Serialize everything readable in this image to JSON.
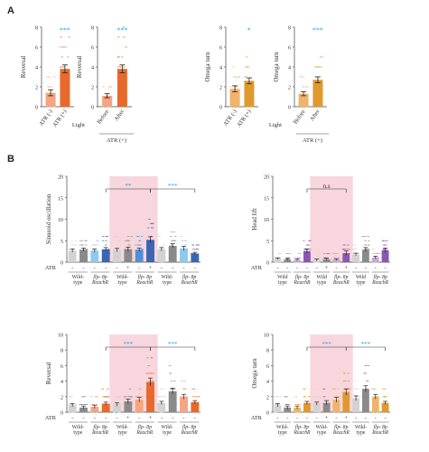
{
  "figure": {
    "panel_A": "A",
    "panel_B": "B"
  },
  "colors": {
    "salmon": "#f4a582",
    "orange": "#e8692c",
    "light_orange": "#f0b36b",
    "dark_orange": "#e0992e",
    "gray_light": "#d2d2d2",
    "gray_dark": "#8a8a8a",
    "blue_light": "#8ec9ee",
    "blue_mid": "#4f8fd6",
    "blue_dark": "#3a66b3",
    "purple_light": "#c7a6d8",
    "purple_dark": "#8a56b3",
    "shade": "#f8d6dd",
    "sig_blue": "#29a3e8"
  },
  "chart_data": [
    {
      "id": "A1",
      "type": "bar",
      "ylabel": "Reversal",
      "ylim": [
        0,
        8
      ],
      "yticks": [
        0,
        2,
        4,
        6,
        8
      ],
      "categories": [
        "ATR (-)",
        "ATR (+)"
      ],
      "values": [
        1.4,
        3.8
      ],
      "errors": [
        0.3,
        0.4
      ],
      "bar_colors": [
        "salmon",
        "orange"
      ],
      "significance": "***"
    },
    {
      "id": "A2",
      "type": "bar",
      "ylabel": "Reversal",
      "ylim": [
        0,
        8
      ],
      "yticks": [
        0,
        2,
        4,
        6,
        8
      ],
      "categories": [
        "Before",
        "After"
      ],
      "values": [
        1.1,
        3.8
      ],
      "errors": [
        0.2,
        0.4
      ],
      "bar_colors": [
        "salmon",
        "orange"
      ],
      "significance": "***",
      "row_label": "Light",
      "group_label": "ATR (+)"
    },
    {
      "id": "A3",
      "type": "bar",
      "ylabel": "Omega turn",
      "ylim": [
        0,
        8
      ],
      "yticks": [
        0,
        2,
        4,
        6,
        8
      ],
      "categories": [
        "ATR (-)",
        "ATR (+)"
      ],
      "values": [
        1.8,
        2.6
      ],
      "errors": [
        0.3,
        0.3
      ],
      "bar_colors": [
        "light_orange",
        "dark_orange"
      ],
      "significance": "*"
    },
    {
      "id": "A4",
      "type": "bar",
      "ylabel": "Omega turn",
      "ylim": [
        0,
        8
      ],
      "yticks": [
        0,
        2,
        4,
        6,
        8
      ],
      "categories": [
        "Before",
        "After"
      ],
      "values": [
        1.3,
        2.7
      ],
      "errors": [
        0.2,
        0.3
      ],
      "bar_colors": [
        "light_orange",
        "dark_orange"
      ],
      "significance": "***",
      "row_label": "Light",
      "group_label": "ATR (+)"
    },
    {
      "id": "B1",
      "type": "bar",
      "ylabel": "Sinusoid oscillation",
      "ylim": [
        0,
        20
      ],
      "yticks": [
        0,
        5,
        10,
        15,
        20
      ],
      "atr_signs": [
        "-",
        "-",
        "-",
        "-",
        "-",
        "+",
        "-",
        "+",
        "-",
        "-",
        "-",
        "-"
      ],
      "values": [
        2.7,
        2.9,
        2.7,
        3.0,
        2.8,
        3.0,
        2.9,
        5.2,
        3.0,
        3.8,
        3.2,
        2.0
      ],
      "errors": [
        0.4,
        0.4,
        0.4,
        0.4,
        0.4,
        0.5,
        0.4,
        0.7,
        0.4,
        0.5,
        0.5,
        0.3
      ],
      "bar_colors": [
        "gray_light",
        "gray_dark",
        "blue_light",
        "blue_dark",
        "gray_light",
        "gray_dark",
        "blue_mid",
        "blue_dark",
        "gray_light",
        "gray_dark",
        "blue_light",
        "blue_dark"
      ],
      "group_labels": [
        [
          "Wild-",
          "type"
        ],
        [
          "flp-",
          "8p",
          "ReachR"
        ],
        [
          "Wild-",
          "type"
        ],
        [
          "flp-",
          "8p",
          "ReachR"
        ],
        [
          "Wild-",
          "type"
        ],
        [
          "flp-",
          "8p",
          "ReachR"
        ]
      ],
      "shade_groups": [
        2,
        3
      ],
      "brackets": [
        {
          "from": 3,
          "to": 7,
          "label": "**"
        },
        {
          "from": 7,
          "to": 11,
          "label": "***"
        }
      ]
    },
    {
      "id": "B2",
      "type": "bar",
      "ylabel": "Head lift",
      "ylim": [
        0,
        20
      ],
      "yticks": [
        0,
        5,
        10,
        15,
        20
      ],
      "atr_signs": [
        "-",
        "-",
        "-",
        "-",
        "-",
        "+",
        "-",
        "+",
        "-",
        "-",
        "-",
        "-"
      ],
      "values": [
        0.8,
        0.6,
        0.5,
        2.6,
        0.5,
        0.7,
        0.6,
        2.1,
        1.8,
        2.9,
        1.1,
        2.8
      ],
      "errors": [
        0.2,
        0.2,
        0.2,
        0.5,
        0.2,
        0.2,
        0.2,
        0.5,
        0.3,
        0.5,
        0.3,
        0.5
      ],
      "bar_colors": [
        "gray_light",
        "gray_dark",
        "purple_light",
        "purple_dark",
        "gray_light",
        "gray_dark",
        "purple_light",
        "purple_dark",
        "gray_light",
        "gray_dark",
        "purple_light",
        "purple_dark"
      ],
      "group_labels": [
        [
          "Wild",
          "type"
        ],
        [
          "flp-",
          "8p",
          "ReachR"
        ],
        [
          "Wild",
          "type"
        ],
        [
          "flp-",
          "8p",
          "ReachR"
        ],
        [
          "Wild",
          "type"
        ],
        [
          "flp-",
          "8p",
          "ReachR"
        ]
      ],
      "shade_groups": [
        2,
        3
      ],
      "brackets": [
        {
          "from": 3,
          "to": 7,
          "label": "n.s"
        }
      ]
    },
    {
      "id": "B3",
      "type": "bar",
      "ylabel": "Reversal",
      "ylim": [
        0,
        10
      ],
      "yticks": [
        0,
        2,
        4,
        6,
        8,
        10
      ],
      "atr_signs": [
        "-",
        "-",
        "-",
        "-",
        "-",
        "+",
        "-",
        "+",
        "-",
        "-",
        "-",
        "-"
      ],
      "values": [
        0.9,
        0.6,
        0.7,
        1.1,
        1.0,
        1.4,
        1.6,
        3.9,
        1.2,
        2.7,
        2.0,
        1.3
      ],
      "errors": [
        0.2,
        0.2,
        0.2,
        0.2,
        0.2,
        0.3,
        0.3,
        0.5,
        0.2,
        0.4,
        0.3,
        0.2
      ],
      "bar_colors": [
        "gray_light",
        "gray_dark",
        "salmon",
        "orange",
        "gray_light",
        "gray_dark",
        "salmon",
        "orange",
        "gray_light",
        "gray_dark",
        "salmon",
        "orange"
      ],
      "group_labels": [
        [
          "Wild-",
          "type"
        ],
        [
          "flp-",
          "8p",
          "ReachR"
        ],
        [
          "Wild-",
          "type"
        ],
        [
          "flp-",
          "8p",
          "ReachR"
        ],
        [
          "Wild-",
          "type"
        ],
        [
          "flp-",
          "8p",
          "ReachR"
        ]
      ],
      "shade_groups": [
        2,
        3
      ],
      "brackets": [
        {
          "from": 3,
          "to": 7,
          "label": "***"
        },
        {
          "from": 7,
          "to": 11,
          "label": "***"
        }
      ]
    },
    {
      "id": "B4",
      "type": "bar",
      "ylabel": "Omega turn",
      "ylim": [
        0,
        10
      ],
      "yticks": [
        0,
        2,
        4,
        6,
        8,
        10
      ],
      "atr_signs": [
        "-",
        "-",
        "-",
        "-",
        "-",
        "+",
        "-",
        "+",
        "-",
        "-",
        "-",
        "-"
      ],
      "values": [
        0.9,
        0.6,
        0.6,
        1.2,
        1.1,
        1.2,
        1.6,
        2.6,
        1.8,
        3.0,
        2.0,
        1.2
      ],
      "errors": [
        0.2,
        0.2,
        0.2,
        0.2,
        0.2,
        0.3,
        0.3,
        0.4,
        0.3,
        0.4,
        0.3,
        0.2
      ],
      "bar_colors": [
        "gray_light",
        "gray_dark",
        "light_orange",
        "dark_orange",
        "gray_light",
        "gray_dark",
        "light_orange",
        "dark_orange",
        "gray_light",
        "gray_dark",
        "light_orange",
        "dark_orange"
      ],
      "group_labels": [
        [
          "Wild-",
          "type"
        ],
        [
          "flp-",
          "8p",
          "ReachR"
        ],
        [
          "Wild-",
          "type"
        ],
        [
          "flp-",
          "8p",
          "ReachR"
        ],
        [
          "Wild-",
          "type"
        ],
        [
          "flp-",
          "8p",
          "ReachR"
        ]
      ],
      "shade_groups": [
        2,
        3
      ],
      "brackets": [
        {
          "from": 3,
          "to": 7,
          "label": "***"
        },
        {
          "from": 7,
          "to": 11,
          "label": "***"
        }
      ]
    }
  ],
  "atr_row_label": "ATR"
}
